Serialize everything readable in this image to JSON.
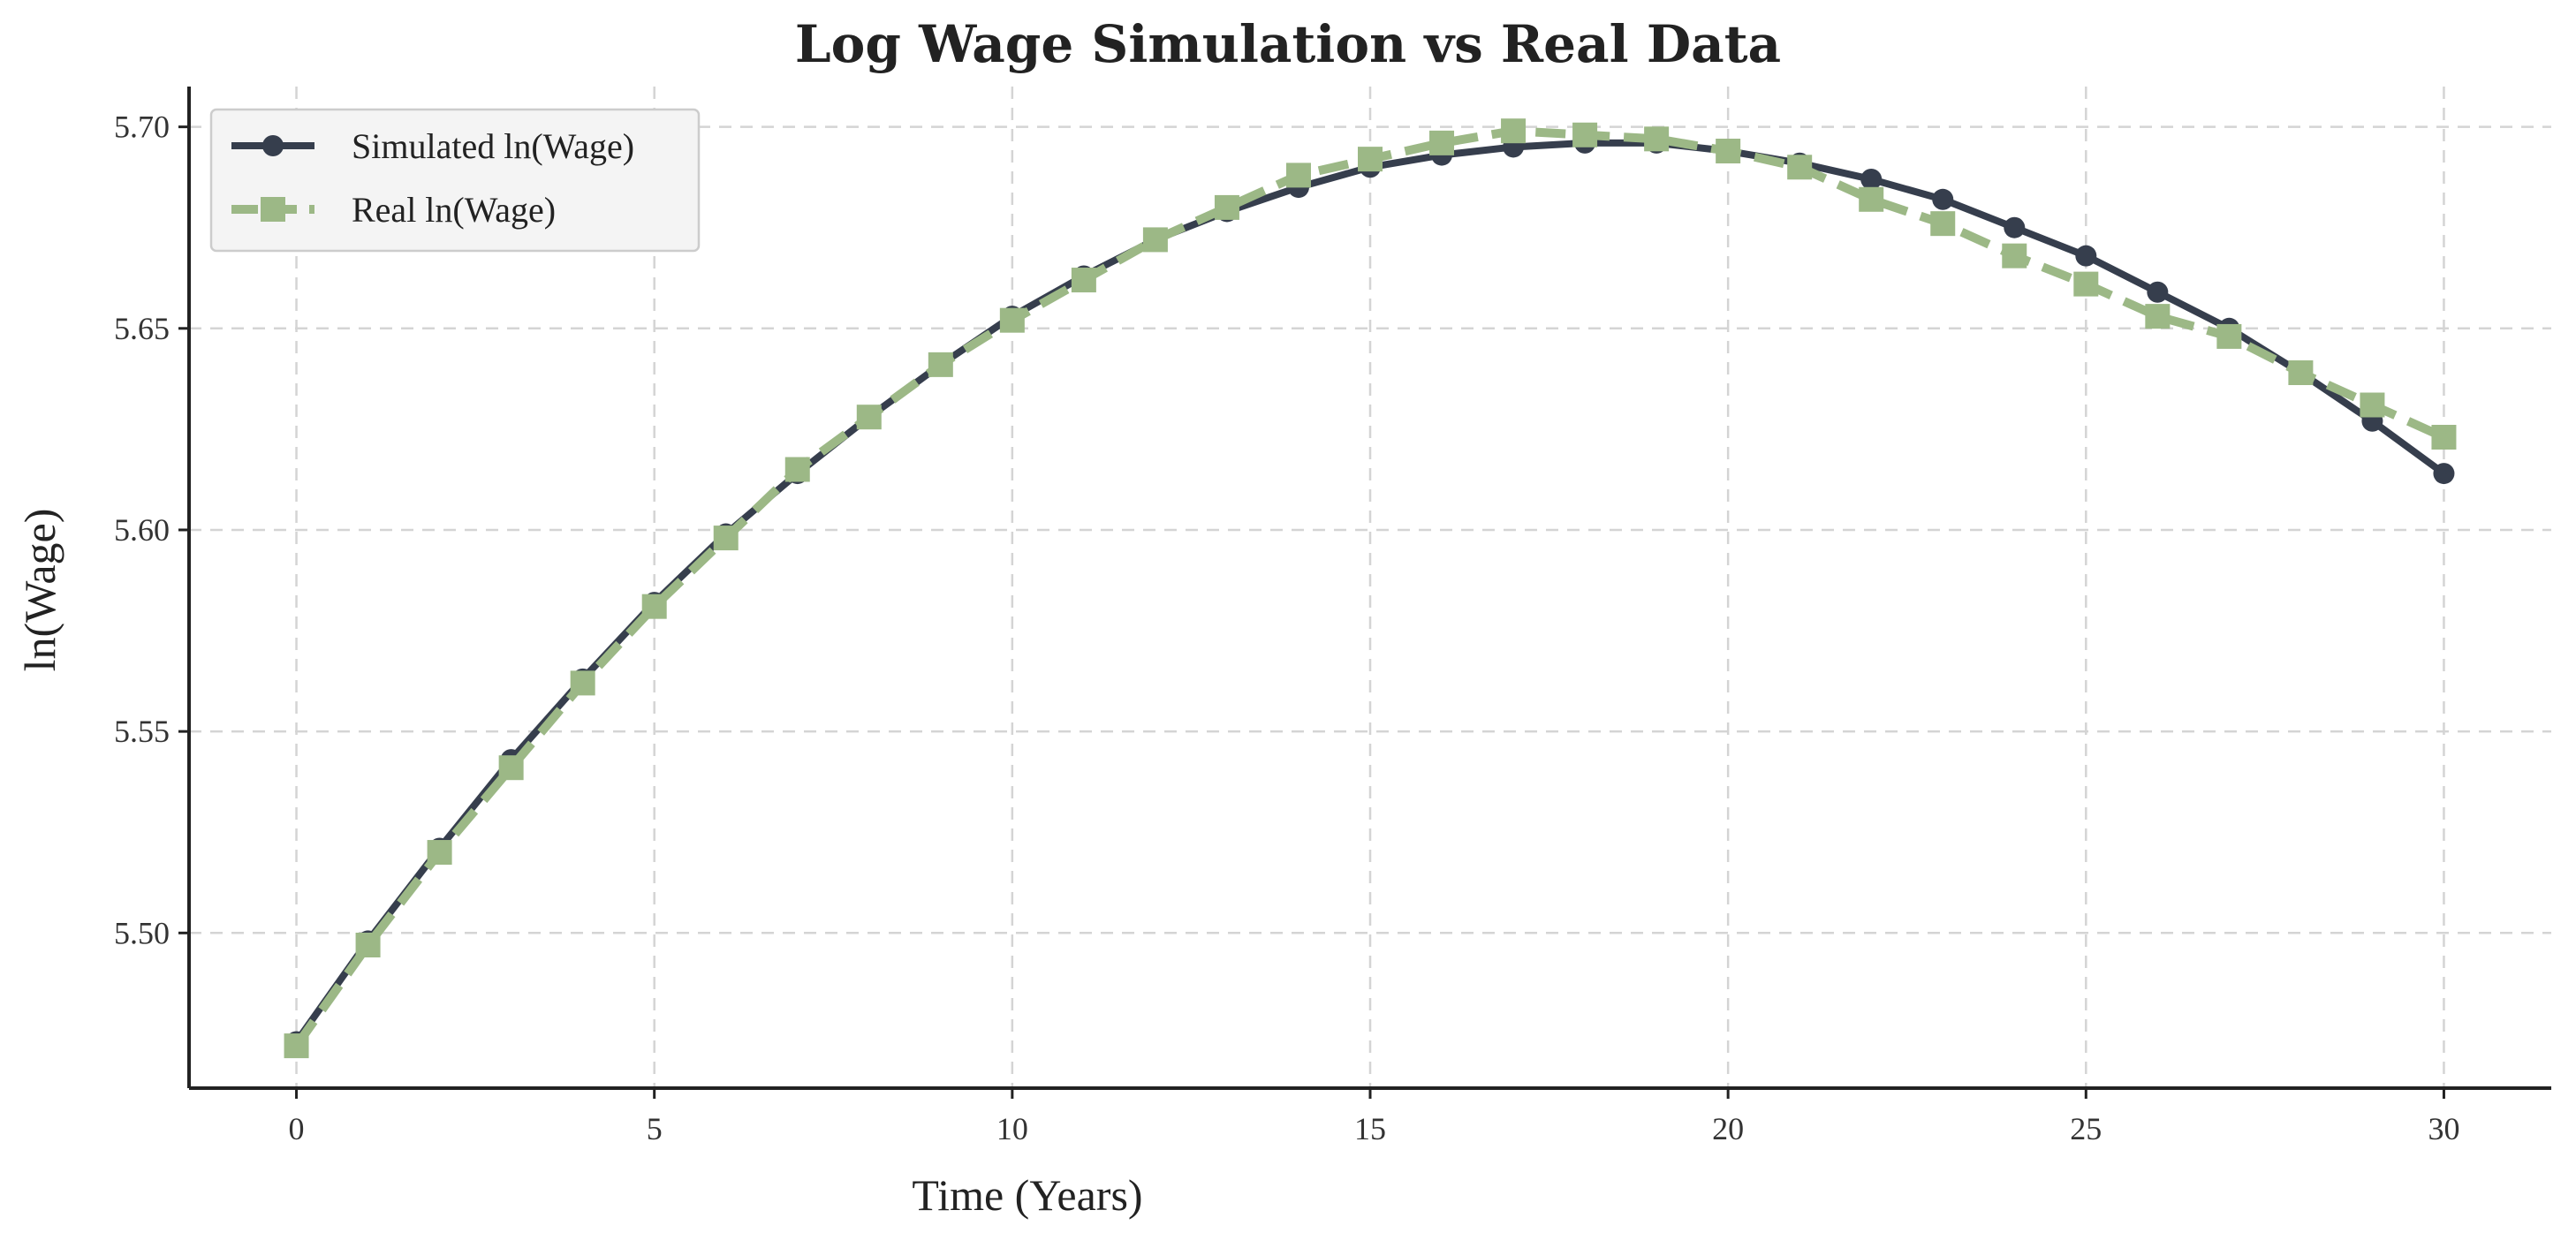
{
  "chart_data": {
    "type": "line",
    "title": "Log Wage Simulation vs Real Data",
    "xlabel": "Time (Years)",
    "ylabel": "ln(Wage)",
    "xlim": [
      -1.5,
      31.5
    ],
    "ylim": [
      5.4615,
      5.71
    ],
    "x_ticks": [
      0,
      5,
      10,
      15,
      20,
      25,
      30
    ],
    "y_ticks": [
      5.5,
      5.55,
      5.6,
      5.65,
      5.7
    ],
    "grid": true,
    "legend_position": "upper-left",
    "x": [
      0,
      1,
      2,
      3,
      4,
      5,
      6,
      7,
      8,
      9,
      10,
      11,
      12,
      13,
      14,
      15,
      16,
      17,
      18,
      19,
      20,
      21,
      22,
      23,
      24,
      25,
      26,
      27,
      28,
      29,
      30
    ],
    "series": [
      {
        "name": "Simulated ln(Wage)",
        "color": "#363e4d",
        "line_style": "solid",
        "marker": "circle",
        "values": [
          5.473,
          5.498,
          5.521,
          5.543,
          5.563,
          5.582,
          5.599,
          5.614,
          5.628,
          5.641,
          5.653,
          5.663,
          5.672,
          5.679,
          5.685,
          5.69,
          5.693,
          5.695,
          5.696,
          5.696,
          5.694,
          5.691,
          5.687,
          5.682,
          5.675,
          5.668,
          5.659,
          5.65,
          5.639,
          5.627,
          5.614
        ]
      },
      {
        "name": "Real ln(Wage)",
        "color": "#9cb886",
        "line_style": "dashed",
        "marker": "square",
        "values": [
          5.472,
          5.497,
          5.52,
          5.541,
          5.562,
          5.581,
          5.598,
          5.615,
          5.628,
          5.641,
          5.652,
          5.662,
          5.672,
          5.68,
          5.688,
          5.692,
          5.696,
          5.699,
          5.698,
          5.697,
          5.694,
          5.69,
          5.682,
          5.676,
          5.668,
          5.661,
          5.653,
          5.648,
          5.639,
          5.631,
          5.623
        ]
      }
    ]
  }
}
